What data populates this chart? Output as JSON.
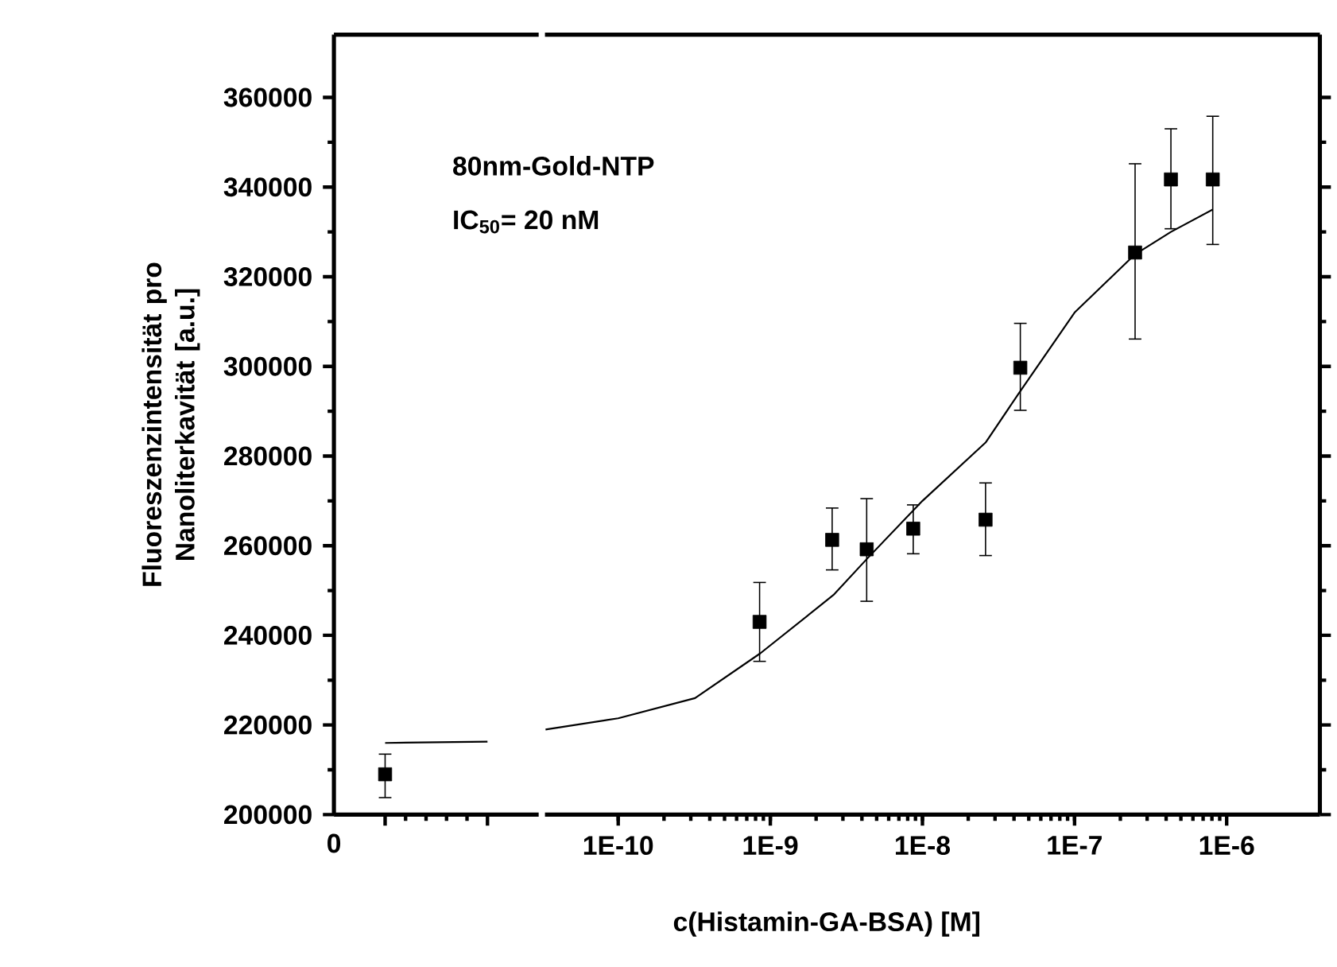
{
  "chart_data": [
    {
      "type": "scatter",
      "ylabel": "Fluoreszenzintensität pro Nanoliterkavität [a.u.]",
      "categories": [
        null,
        null
      ],
      "annotations": [
        "0"
      ],
      "ylim": [
        200000,
        374000
      ],
      "yticks": [
        200000,
        220000,
        240000,
        260000,
        280000,
        300000,
        320000,
        340000,
        360000
      ],
      "series": [
        {
          "marker": "square",
          "color": "#000000",
          "values": [
            209000,
            null
          ],
          "errors": [
            [
              203800,
              213500
            ],
            null
          ]
        },
        {
          "type": "line",
          "marker": "none",
          "color": "#000000",
          "values": [
            216000,
            216300
          ]
        }
      ]
    },
    {
      "type": "scatter",
      "xlabel": "c(Histamin-GA-BSA) [M]",
      "log": "x",
      "tick_labels": "x",
      "annotations": [
        "80nm-Gold-NTP",
        "IC$_{50}$= 20 nM"
      ],
      "xlim": [
        3.3e-11,
        4.1e-06
      ],
      "xticks": [
        {
          "value": 1e-10,
          "label": "1E-10"
        },
        {
          "value": 1e-09,
          "label": "1E-9"
        },
        {
          "value": 1e-08,
          "label": "1E-8"
        },
        {
          "value": 1e-07,
          "label": "1E-7"
        },
        {
          "value": 1e-06,
          "label": "1E-6"
        }
      ],
      "ylim": [
        200000,
        374000
      ],
      "yticks": [
        200000,
        220000,
        240000,
        260000,
        280000,
        300000,
        320000,
        340000,
        360000
      ],
      "series": [
        {
          "marker": "square",
          "color": "#000000",
          "x": [
            8.5e-10,
            2.55e-09,
            4.3e-09,
            8.7e-09,
            2.6e-08,
            4.4e-08,
            2.5e-07,
            4.3e-07,
            8.1e-07
          ],
          "values": [
            243000,
            261300,
            259200,
            263800,
            265800,
            299700,
            325400,
            341700,
            341700
          ],
          "errors": [
            [
              234200,
              251800
            ],
            [
              254600,
              268400
            ],
            [
              247600,
              270500
            ],
            [
              258200,
              269100
            ],
            [
              257800,
              274000
            ],
            [
              290200,
              309600
            ],
            [
              306100,
              345200
            ],
            [
              330700,
              353000
            ],
            [
              327200,
              355800
            ]
          ]
        },
        {
          "type": "line",
          "marker": "none",
          "color": "#000000",
          "x": [
            3.33e-11,
            1e-10,
            3.2e-10,
            8.6e-10,
            2.6e-09,
            4.3e-09,
            1e-08,
            2.6e-08,
            4.3e-08,
            1e-07,
            2.5e-07,
            4.3e-07,
            8.1e-07
          ],
          "values": [
            219000,
            221500,
            226000,
            236000,
            249000,
            257000,
            270000,
            283000,
            294000,
            312000,
            325000,
            330000,
            335000
          ]
        }
      ]
    }
  ]
}
